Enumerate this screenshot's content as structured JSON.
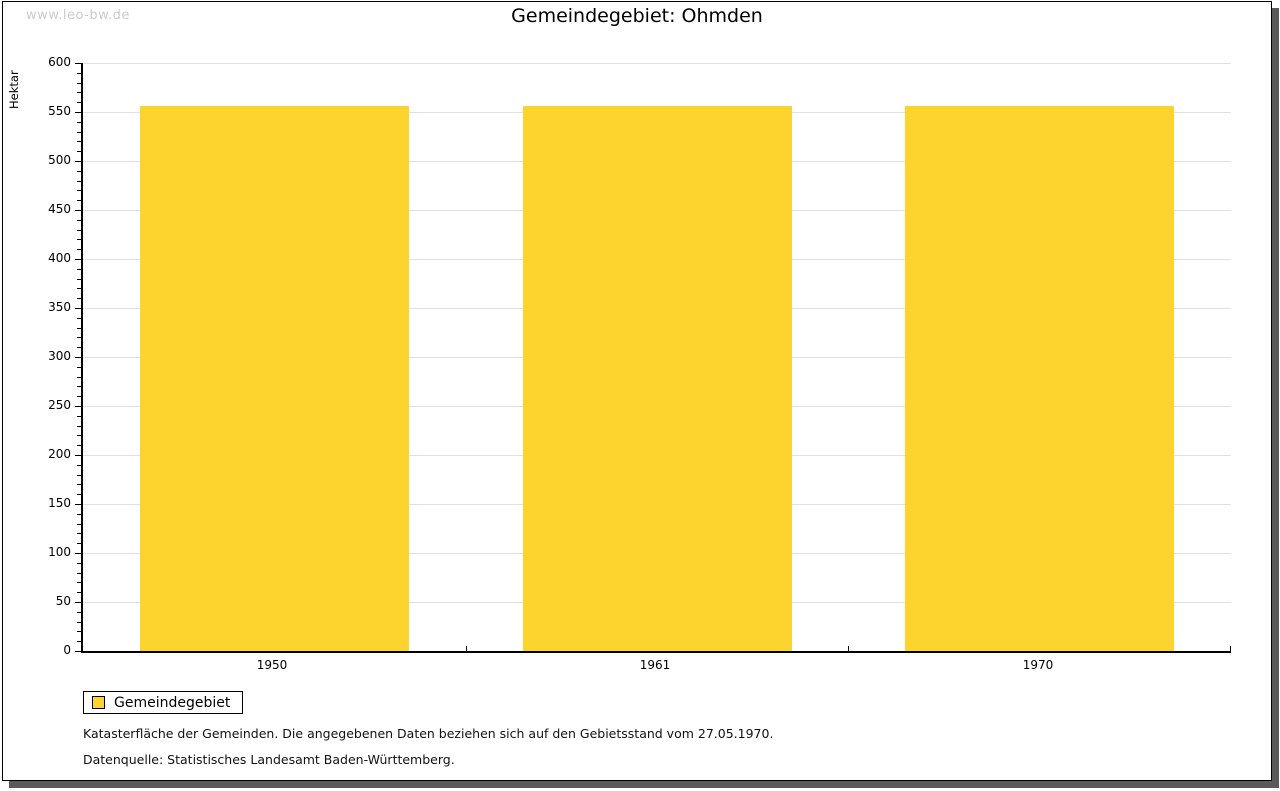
{
  "watermark": "www.leo-bw.de",
  "title": "Gemeindegebiet: Ohmden",
  "chart_data": {
    "type": "bar",
    "title": "Gemeindegebiet: Ohmden",
    "categories": [
      "1950",
      "1961",
      "1970"
    ],
    "series": [
      {
        "name": "Gemeindegebiet",
        "values": [
          556,
          556,
          556
        ]
      }
    ],
    "xlabel": "",
    "ylabel": "Hektar",
    "ylim": [
      0,
      600
    ],
    "ytick_step": 50,
    "yminor_step": 10,
    "grid": "horizontal-major",
    "legend_position": "bottom-left",
    "bar_color": "#FDD42E"
  },
  "legend": {
    "items": [
      {
        "label": "Gemeindegebiet",
        "color": "#FDD42E"
      }
    ]
  },
  "footnotes": [
    "Katasterfläche der Gemeinden. Die angegebenen Daten beziehen sich auf den Gebietsstand vom 27.05.1970.",
    "Datenquelle: Statistisches Landesamt Baden-Württemberg."
  ],
  "colors": {
    "bar": "#FDD42E",
    "grid": "#E0E0E0",
    "axis": "#000000",
    "watermark": "#CBCBCB",
    "shadow": "#5A5A5A",
    "text": "#000000"
  }
}
